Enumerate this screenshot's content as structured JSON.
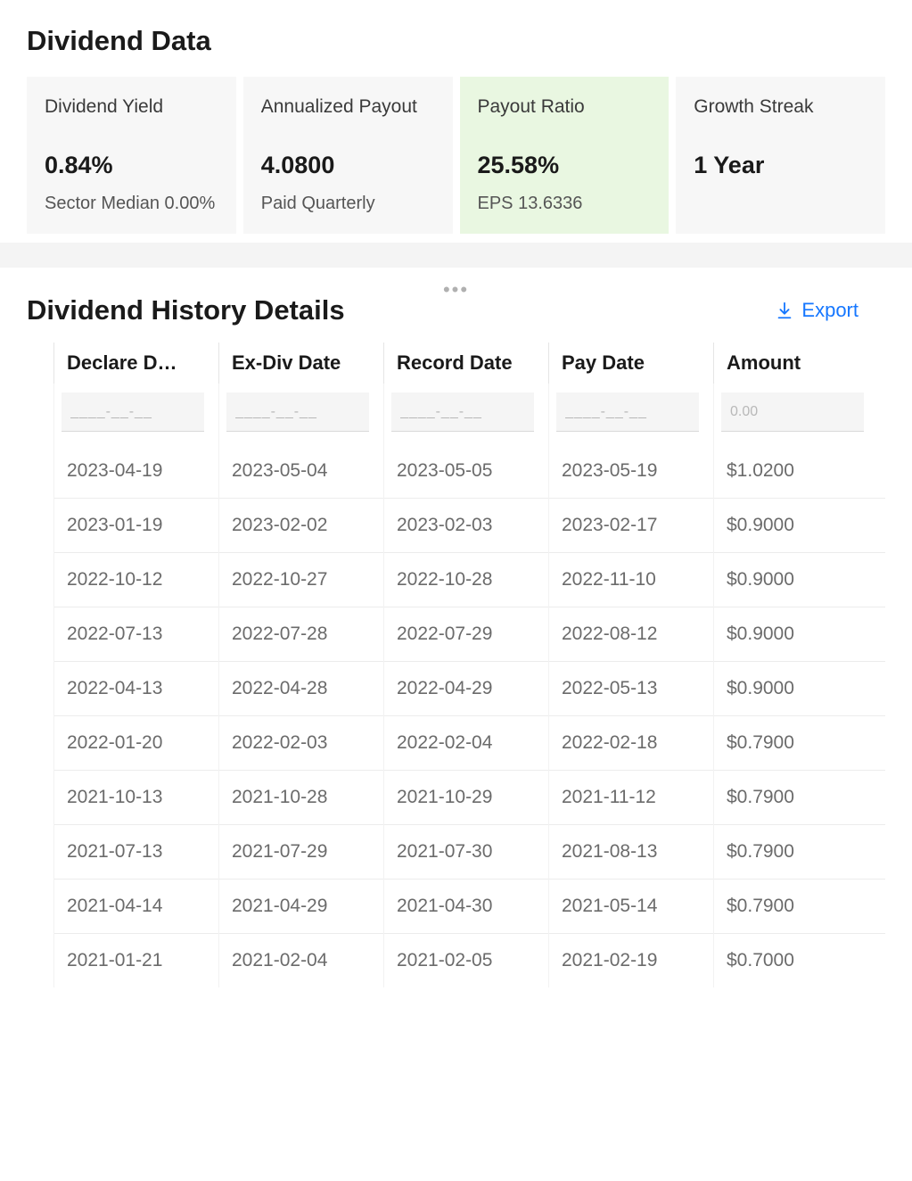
{
  "colors": {
    "card_bg": "#f7f7f7",
    "card_highlight_bg": "#e9f7e1",
    "link": "#1677ff",
    "text_primary": "#1a1a1a",
    "text_secondary": "#555555",
    "text_muted": "#6b6b6b",
    "border": "#e5e5e5"
  },
  "dividend": {
    "title": "Dividend Data",
    "cards": [
      {
        "label": "Dividend Yield",
        "value": "0.84%",
        "sub": "Sector Median 0.00%",
        "highlight": false
      },
      {
        "label": "Annualized Payout",
        "value": "4.0800",
        "sub": "Paid Quarterly",
        "highlight": false
      },
      {
        "label": "Payout Ratio",
        "value": "25.58%",
        "sub": "EPS 13.6336",
        "highlight": true
      },
      {
        "label": "Growth Streak",
        "value": "1 Year",
        "sub": "",
        "highlight": false
      }
    ]
  },
  "history": {
    "title": "Dividend History Details",
    "export_label": "Export",
    "columns": [
      {
        "key": "declare",
        "label": "Declare Date",
        "placeholder": "____-__-__"
      },
      {
        "key": "exdiv",
        "label": "Ex-Div Date",
        "placeholder": "____-__-__"
      },
      {
        "key": "record",
        "label": "Record Date",
        "placeholder": "____-__-__"
      },
      {
        "key": "pay",
        "label": "Pay Date",
        "placeholder": "____-__-__"
      },
      {
        "key": "amount",
        "label": "Amount",
        "placeholder": "0.00"
      }
    ],
    "rows": [
      {
        "declare": "2023-04-19",
        "exdiv": "2023-05-04",
        "record": "2023-05-05",
        "pay": "2023-05-19",
        "amount": "$1.0200"
      },
      {
        "declare": "2023-01-19",
        "exdiv": "2023-02-02",
        "record": "2023-02-03",
        "pay": "2023-02-17",
        "amount": "$0.9000"
      },
      {
        "declare": "2022-10-12",
        "exdiv": "2022-10-27",
        "record": "2022-10-28",
        "pay": "2022-11-10",
        "amount": "$0.9000"
      },
      {
        "declare": "2022-07-13",
        "exdiv": "2022-07-28",
        "record": "2022-07-29",
        "pay": "2022-08-12",
        "amount": "$0.9000"
      },
      {
        "declare": "2022-04-13",
        "exdiv": "2022-04-28",
        "record": "2022-04-29",
        "pay": "2022-05-13",
        "amount": "$0.9000"
      },
      {
        "declare": "2022-01-20",
        "exdiv": "2022-02-03",
        "record": "2022-02-04",
        "pay": "2022-02-18",
        "amount": "$0.7900"
      },
      {
        "declare": "2021-10-13",
        "exdiv": "2021-10-28",
        "record": "2021-10-29",
        "pay": "2021-11-12",
        "amount": "$0.7900"
      },
      {
        "declare": "2021-07-13",
        "exdiv": "2021-07-29",
        "record": "2021-07-30",
        "pay": "2021-08-13",
        "amount": "$0.7900"
      },
      {
        "declare": "2021-04-14",
        "exdiv": "2021-04-29",
        "record": "2021-04-30",
        "pay": "2021-05-14",
        "amount": "$0.7900"
      },
      {
        "declare": "2021-01-21",
        "exdiv": "2021-02-04",
        "record": "2021-02-05",
        "pay": "2021-02-19",
        "amount": "$0.7000"
      }
    ]
  }
}
